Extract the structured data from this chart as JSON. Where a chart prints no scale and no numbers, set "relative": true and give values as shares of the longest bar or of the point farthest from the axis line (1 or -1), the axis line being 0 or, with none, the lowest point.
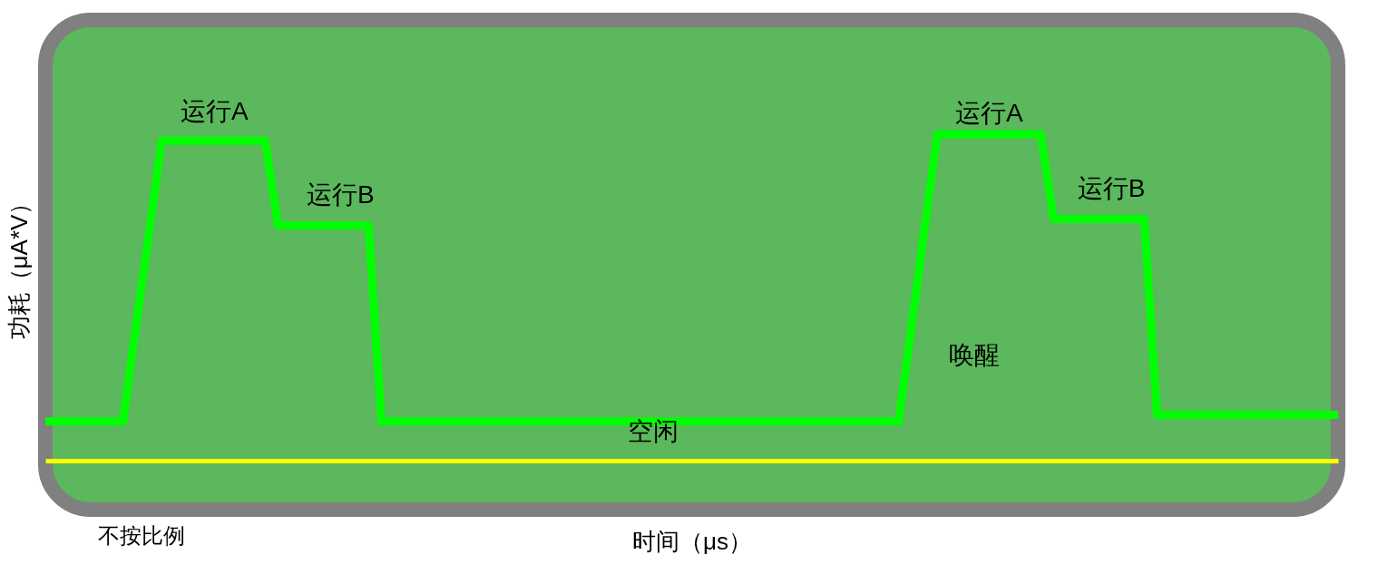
{
  "chart_data": {
    "type": "line",
    "relative": true,
    "xlabel": "时间（μs）",
    "ylabel": "功耗（μA*V）",
    "line_style": "solid",
    "categories": [
      null,
      null,
      null,
      null,
      null,
      null,
      null,
      null,
      null,
      null,
      null,
      null,
      null,
      null,
      null,
      null,
      null,
      null,
      null,
      null,
      null,
      null,
      null,
      null,
      null,
      null,
      null,
      null,
      null,
      null,
      null,
      null,
      null,
      null,
      null,
      null,
      null,
      null,
      null,
      null,
      null,
      null,
      null,
      null,
      null,
      null,
      null,
      null,
      null,
      null,
      null,
      null,
      null,
      null,
      null,
      null,
      null,
      null,
      null,
      null,
      null,
      null,
      null,
      null,
      null,
      null,
      null,
      null,
      null,
      null,
      null,
      null,
      null,
      null,
      null,
      null,
      null,
      null,
      null,
      null,
      null,
      null,
      null,
      null,
      null,
      null,
      null,
      null,
      null,
      null,
      null,
      null,
      null,
      null,
      null,
      null,
      null,
      null,
      null,
      null,
      null
    ],
    "series": [
      {
        "color": "#00ff00",
        "values": [
          0.12,
          0.12,
          0.12,
          0.12,
          0.12,
          0.12,
          0.12,
          0.41,
          0.69,
          0.98,
          0.98,
          0.98,
          0.98,
          0.98,
          0.98,
          0.98,
          0.98,
          0.98,
          0.72,
          0.72,
          0.72,
          0.72,
          0.72,
          0.72,
          0.72,
          0.72,
          0.12,
          0.12,
          0.12,
          0.12,
          0.12,
          0.12,
          0.12,
          0.12,
          0.12,
          0.12,
          0.12,
          0.12,
          0.12,
          0.12,
          0.12,
          0.12,
          0.12,
          0.12,
          0.12,
          0.12,
          0.12,
          0.12,
          0.12,
          0.12,
          0.12,
          0.12,
          0.12,
          0.12,
          0.12,
          0.12,
          0.12,
          0.12,
          0.12,
          0.12,
          0.12,
          0.12,
          0.12,
          0.12,
          0.12,
          0.12,
          0.12,
          0.41,
          0.71,
          1.0,
          1.0,
          1.0,
          1.0,
          1.0,
          1.0,
          1.0,
          1.0,
          1.0,
          0.74,
          0.74,
          0.74,
          0.74,
          0.74,
          0.74,
          0.74,
          0.74,
          0.14,
          0.14,
          0.14,
          0.14,
          0.14,
          0.14,
          0.14,
          0.14,
          0.14,
          0.14,
          0.14,
          0.14,
          0.14,
          0.14,
          0.14
        ]
      }
    ],
    "annotations": [
      "运行A",
      "运行B",
      "运行A",
      "运行B",
      "唤醒",
      "空闲",
      "不按比例"
    ]
  }
}
